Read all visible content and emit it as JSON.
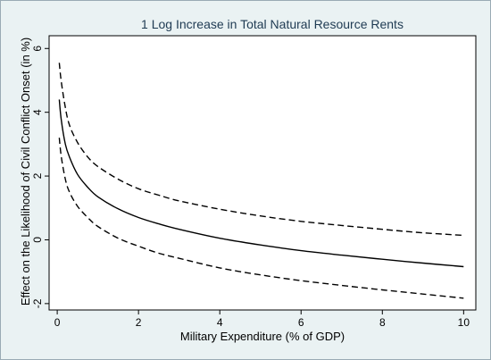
{
  "chart_data": {
    "type": "line",
    "title": "1 Log Increase in Total Natural Resource Rents",
    "xlabel": "Military Expenditure (% of GDP)",
    "ylabel": "Effect on the Likelihood of Civil Conflict Onset (in %)",
    "xlim": [
      -0.2,
      10.3
    ],
    "ylim": [
      -2.2,
      6.4
    ],
    "xticks": [
      0,
      2,
      4,
      6,
      8,
      10
    ],
    "yticks": [
      -2,
      0,
      2,
      4,
      6
    ],
    "grid": false,
    "legend": "none",
    "x": [
      0.05,
      0.1,
      0.2,
      0.3,
      0.5,
      0.75,
      1,
      1.5,
      2,
      2.5,
      3,
      4,
      5,
      6,
      7,
      8,
      9,
      10
    ],
    "series": [
      {
        "role": "upper-ci",
        "style": "dashed",
        "values": [
          5.55,
          4.95,
          4.15,
          3.6,
          3.05,
          2.6,
          2.3,
          1.9,
          1.6,
          1.4,
          1.22,
          0.96,
          0.75,
          0.58,
          0.45,
          0.33,
          0.22,
          0.14
        ]
      },
      {
        "role": "estimate",
        "style": "solid",
        "values": [
          4.4,
          3.75,
          3.0,
          2.6,
          2.05,
          1.65,
          1.35,
          0.97,
          0.7,
          0.5,
          0.33,
          0.05,
          -0.16,
          -0.34,
          -0.48,
          -0.61,
          -0.73,
          -0.84
        ]
      },
      {
        "role": "lower-ci",
        "style": "dashed",
        "values": [
          3.2,
          2.6,
          1.9,
          1.5,
          1.05,
          0.7,
          0.42,
          0.05,
          -0.2,
          -0.42,
          -0.58,
          -0.88,
          -1.1,
          -1.28,
          -1.43,
          -1.57,
          -1.7,
          -1.83
        ]
      }
    ],
    "colors": {
      "line": "#000000",
      "plot_bg": "#ffffff",
      "outer_bg": "#eaf2f3",
      "title": "#1f3b53"
    }
  }
}
